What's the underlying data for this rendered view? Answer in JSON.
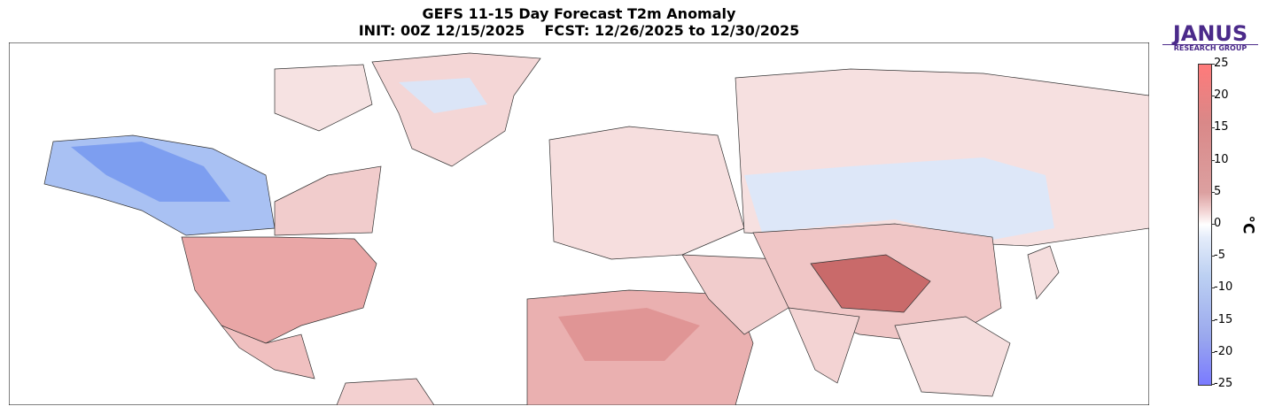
{
  "title": "GEFS 11-15 Day Forecast T2m Anomaly",
  "subtitle": "INIT: 00Z 12/15/2025    FCST: 12/26/2025 to 12/30/2025",
  "logo": {
    "name": "JANUS",
    "subname": "RESEARCH GROUP"
  },
  "colorbar": {
    "unit": "°C",
    "min": -25,
    "max": 25,
    "ticks": [
      "25",
      "20",
      "15",
      "10",
      "5",
      "0",
      "-5",
      "-10",
      "-15",
      "-20",
      "-25"
    ],
    "warm_color": "#ff7a7a",
    "cold_color": "#7a7aff"
  }
}
